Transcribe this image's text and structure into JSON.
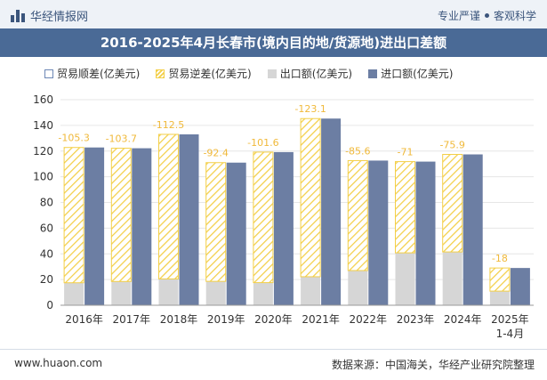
{
  "header": {
    "brand": "华经情报网",
    "tag1": "专业严谨",
    "tag2": "客观科学"
  },
  "title": "2016-2025年4月长春市(境内目的地/货源地)进出口差额",
  "legend": {
    "surplus": "贸易顺差(亿美元)",
    "deficit": "贸易逆差(亿美元)",
    "export": "出口额(亿美元)",
    "import": "进口额(亿美元)"
  },
  "colors": {
    "import": "#6c7ea3",
    "export": "#d6d6d6",
    "deficit": "#f3cf48",
    "label": "#f0b93a"
  },
  "chart_data": {
    "type": "bar",
    "categories": [
      "2016年",
      "2017年",
      "2018年",
      "2019年",
      "2020年",
      "2021年",
      "2022年",
      "2023年",
      "2024年",
      "2025年\n1-4月"
    ],
    "ylim": [
      0,
      160
    ],
    "yticks": [
      0,
      20,
      40,
      60,
      80,
      100,
      120,
      140,
      160
    ],
    "series": [
      {
        "name": "出口额(亿美元)",
        "values": [
          17.5,
          18.5,
          20.5,
          18.6,
          17.6,
          22.2,
          27.0,
          40.8,
          41.5,
          11.0
        ]
      },
      {
        "name": "进口额(亿美元)",
        "values": [
          122.8,
          122.2,
          133.0,
          111.0,
          119.2,
          145.3,
          112.6,
          111.8,
          117.4,
          29.0
        ]
      },
      {
        "name": "贸易逆差(亿美元)",
        "values": [
          -105.3,
          -103.7,
          -112.5,
          -92.4,
          -101.6,
          -123.1,
          -85.6,
          -71,
          -75.9,
          -18
        ]
      }
    ],
    "data_labels": [
      "-105.3",
      "-103.7",
      "-112.5",
      "-92.4",
      "-101.6",
      "-123.1",
      "-85.6",
      "-71",
      "-75.9",
      "-18"
    ]
  },
  "footer": {
    "website": "www.huaon.com",
    "source": "数据来源：中国海关，华经产业研究院整理"
  }
}
